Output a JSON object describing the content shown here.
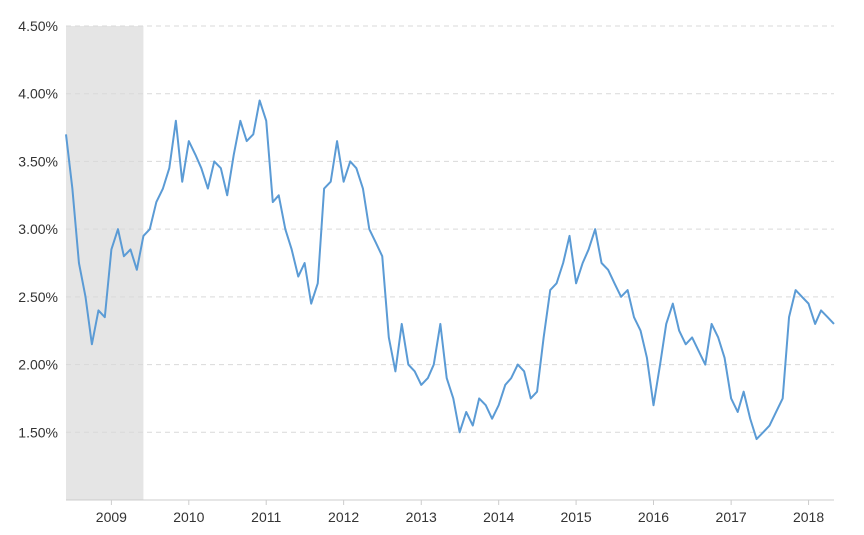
{
  "chart_data": {
    "type": "line",
    "title": "",
    "xlabel": "",
    "ylabel": "",
    "ylim": [
      1.0,
      4.5
    ],
    "xlim": [
      "2008-06-01",
      "2018-05-01"
    ],
    "grid": true,
    "recession_shade": {
      "from": "2008-06-01",
      "to": "2009-06-01",
      "color": "#e5e5e5"
    },
    "y_ticks": [
      {
        "value": 1.5,
        "label": "1.50%"
      },
      {
        "value": 2.0,
        "label": "2.00%"
      },
      {
        "value": 2.5,
        "label": "2.50%"
      },
      {
        "value": 3.0,
        "label": "3.00%"
      },
      {
        "value": 3.5,
        "label": "3.50%"
      },
      {
        "value": 4.0,
        "label": "4.00%"
      },
      {
        "value": 4.5,
        "label": "4.50%"
      }
    ],
    "x_ticks": [
      {
        "date": "2009-01-01",
        "label": "2009"
      },
      {
        "date": "2010-01-01",
        "label": "2010"
      },
      {
        "date": "2011-01-01",
        "label": "2011"
      },
      {
        "date": "2012-01-01",
        "label": "2012"
      },
      {
        "date": "2013-01-01",
        "label": "2013"
      },
      {
        "date": "2014-01-01",
        "label": "2014"
      },
      {
        "date": "2015-01-01",
        "label": "2015"
      },
      {
        "date": "2016-01-01",
        "label": "2016"
      },
      {
        "date": "2017-01-01",
        "label": "2017"
      },
      {
        "date": "2018-01-01",
        "label": "2018"
      }
    ],
    "series": [
      {
        "color": "#5b9bd5",
        "points": [
          [
            "2008-06-01",
            3.7
          ],
          [
            "2008-07-01",
            3.3
          ],
          [
            "2008-08-01",
            2.75
          ],
          [
            "2008-09-01",
            2.5
          ],
          [
            "2008-10-01",
            2.15
          ],
          [
            "2008-11-01",
            2.4
          ],
          [
            "2008-12-01",
            2.35
          ],
          [
            "2009-01-01",
            2.85
          ],
          [
            "2009-02-01",
            3.0
          ],
          [
            "2009-03-01",
            2.8
          ],
          [
            "2009-04-01",
            2.85
          ],
          [
            "2009-05-01",
            2.7
          ],
          [
            "2009-06-01",
            2.95
          ],
          [
            "2009-07-01",
            3.0
          ],
          [
            "2009-08-01",
            3.2
          ],
          [
            "2009-09-01",
            3.3
          ],
          [
            "2009-10-01",
            3.45
          ],
          [
            "2009-11-01",
            3.8
          ],
          [
            "2009-12-01",
            3.35
          ],
          [
            "2010-01-01",
            3.65
          ],
          [
            "2010-02-01",
            3.55
          ],
          [
            "2010-03-01",
            3.45
          ],
          [
            "2010-04-01",
            3.3
          ],
          [
            "2010-05-01",
            3.5
          ],
          [
            "2010-06-01",
            3.45
          ],
          [
            "2010-07-01",
            3.25
          ],
          [
            "2010-08-01",
            3.55
          ],
          [
            "2010-09-01",
            3.8
          ],
          [
            "2010-10-01",
            3.65
          ],
          [
            "2010-11-01",
            3.7
          ],
          [
            "2010-12-01",
            3.95
          ],
          [
            "2011-01-01",
            3.8
          ],
          [
            "2011-02-01",
            3.2
          ],
          [
            "2011-03-01",
            3.25
          ],
          [
            "2011-04-01",
            3.0
          ],
          [
            "2011-05-01",
            2.85
          ],
          [
            "2011-06-01",
            2.65
          ],
          [
            "2011-07-01",
            2.75
          ],
          [
            "2011-08-01",
            2.45
          ],
          [
            "2011-09-01",
            2.6
          ],
          [
            "2011-10-01",
            3.3
          ],
          [
            "2011-11-01",
            3.35
          ],
          [
            "2011-12-01",
            3.65
          ],
          [
            "2012-01-01",
            3.35
          ],
          [
            "2012-02-01",
            3.5
          ],
          [
            "2012-03-01",
            3.45
          ],
          [
            "2012-04-01",
            3.3
          ],
          [
            "2012-05-01",
            3.0
          ],
          [
            "2012-06-01",
            2.9
          ],
          [
            "2012-07-01",
            2.8
          ],
          [
            "2012-08-01",
            2.2
          ],
          [
            "2012-09-01",
            1.95
          ],
          [
            "2012-10-01",
            2.3
          ],
          [
            "2012-11-01",
            2.0
          ],
          [
            "2012-12-01",
            1.95
          ],
          [
            "2013-01-01",
            1.85
          ],
          [
            "2013-02-01",
            1.9
          ],
          [
            "2013-03-01",
            2.0
          ],
          [
            "2013-04-01",
            2.3
          ],
          [
            "2013-05-01",
            1.9
          ],
          [
            "2013-06-01",
            1.75
          ],
          [
            "2013-07-01",
            1.5
          ],
          [
            "2013-08-01",
            1.65
          ],
          [
            "2013-09-01",
            1.55
          ],
          [
            "2013-10-01",
            1.75
          ],
          [
            "2013-11-01",
            1.7
          ],
          [
            "2013-12-01",
            1.6
          ],
          [
            "2014-01-01",
            1.7
          ],
          [
            "2014-02-01",
            1.85
          ],
          [
            "2014-03-01",
            1.9
          ],
          [
            "2014-04-01",
            2.0
          ],
          [
            "2014-05-01",
            1.95
          ],
          [
            "2014-06-01",
            1.75
          ],
          [
            "2014-07-01",
            1.8
          ],
          [
            "2014-08-01",
            2.2
          ],
          [
            "2014-09-01",
            2.55
          ],
          [
            "2014-10-01",
            2.6
          ],
          [
            "2014-11-01",
            2.75
          ],
          [
            "2014-12-01",
            2.95
          ],
          [
            "2015-01-01",
            2.6
          ],
          [
            "2015-02-01",
            2.75
          ],
          [
            "2015-03-01",
            2.85
          ],
          [
            "2015-04-01",
            3.0
          ],
          [
            "2015-05-01",
            2.75
          ],
          [
            "2015-06-01",
            2.7
          ],
          [
            "2015-07-01",
            2.6
          ],
          [
            "2015-08-01",
            2.5
          ],
          [
            "2015-09-01",
            2.55
          ],
          [
            "2015-10-01",
            2.35
          ],
          [
            "2015-11-01",
            2.25
          ],
          [
            "2015-12-01",
            2.05
          ],
          [
            "2016-01-01",
            1.7
          ],
          [
            "2016-02-01",
            2.0
          ],
          [
            "2016-03-01",
            2.3
          ],
          [
            "2016-04-01",
            2.45
          ],
          [
            "2016-05-01",
            2.25
          ],
          [
            "2016-06-01",
            2.15
          ],
          [
            "2016-07-01",
            2.2
          ],
          [
            "2016-08-01",
            2.1
          ],
          [
            "2016-09-01",
            2.0
          ],
          [
            "2016-10-01",
            2.3
          ],
          [
            "2016-11-01",
            2.2
          ],
          [
            "2016-12-01",
            2.05
          ],
          [
            "2017-01-01",
            1.75
          ],
          [
            "2017-02-01",
            1.65
          ],
          [
            "2017-03-01",
            1.8
          ],
          [
            "2017-04-01",
            1.6
          ],
          [
            "2017-05-01",
            1.45
          ],
          [
            "2017-06-01",
            1.5
          ],
          [
            "2017-07-01",
            1.55
          ],
          [
            "2017-08-01",
            1.65
          ],
          [
            "2017-09-01",
            1.75
          ],
          [
            "2017-10-01",
            2.35
          ],
          [
            "2017-11-01",
            2.55
          ],
          [
            "2017-12-01",
            2.5
          ],
          [
            "2018-01-01",
            2.45
          ],
          [
            "2018-02-01",
            2.3
          ],
          [
            "2018-03-01",
            2.4
          ],
          [
            "2018-04-01",
            2.35
          ],
          [
            "2018-05-01",
            2.3
          ]
        ]
      }
    ]
  }
}
